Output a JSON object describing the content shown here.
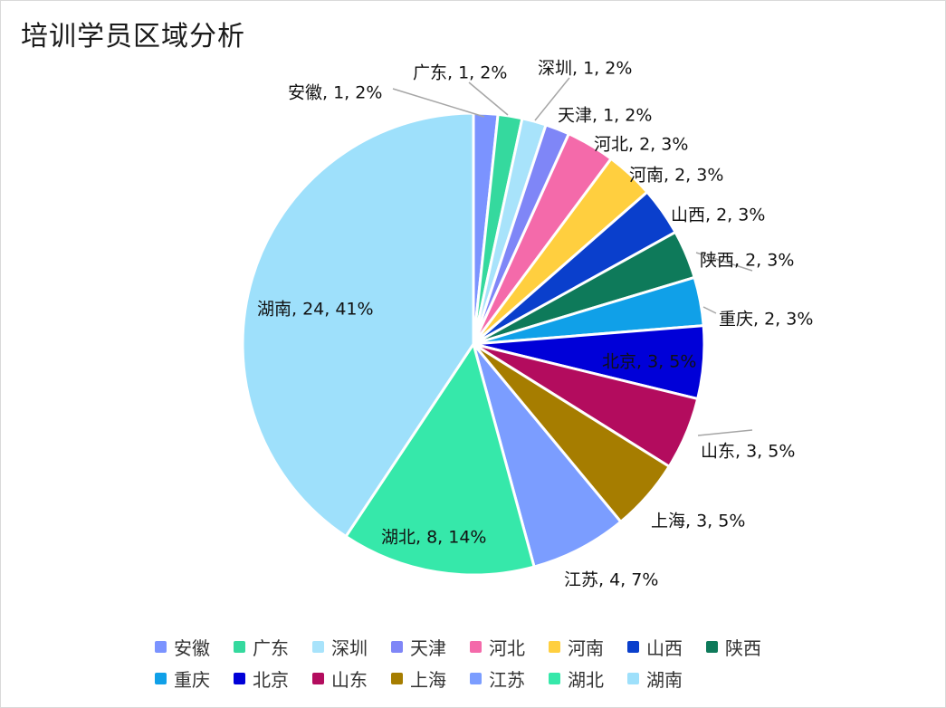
{
  "title": "培训学员区域分析",
  "chart_data": {
    "type": "pie",
    "title": "培训学员区域分析",
    "slices": [
      {
        "name": "安徽",
        "value": 1,
        "percent": "2%",
        "color": "#7b93ff"
      },
      {
        "name": "广东",
        "value": 1,
        "percent": "2%",
        "color": "#35d99e"
      },
      {
        "name": "深圳",
        "value": 1,
        "percent": "2%",
        "color": "#a8e3fb"
      },
      {
        "name": "天津",
        "value": 1,
        "percent": "2%",
        "color": "#7f86f7"
      },
      {
        "name": "河北",
        "value": 2,
        "percent": "3%",
        "color": "#f46aaa"
      },
      {
        "name": "河南",
        "value": 2,
        "percent": "3%",
        "color": "#ffcf3f"
      },
      {
        "name": "山西",
        "value": 2,
        "percent": "3%",
        "color": "#0a3fcc"
      },
      {
        "name": "陕西",
        "value": 2,
        "percent": "3%",
        "color": "#0e7a5a"
      },
      {
        "name": "重庆",
        "value": 2,
        "percent": "3%",
        "color": "#10a0e8"
      },
      {
        "name": "北京",
        "value": 3,
        "percent": "5%",
        "color": "#0000d8"
      },
      {
        "name": "山东",
        "value": 3,
        "percent": "5%",
        "color": "#b30c5e"
      },
      {
        "name": "上海",
        "value": 3,
        "percent": "5%",
        "color": "#a67d00"
      },
      {
        "name": "江苏",
        "value": 4,
        "percent": "7%",
        "color": "#7b9dff"
      },
      {
        "name": "湖北",
        "value": 8,
        "percent": "14%",
        "color": "#36e8aa"
      },
      {
        "name": "湖南",
        "value": 24,
        "percent": "41%",
        "color": "#9ee0fb"
      }
    ],
    "legend": {
      "position": "bottom"
    }
  }
}
